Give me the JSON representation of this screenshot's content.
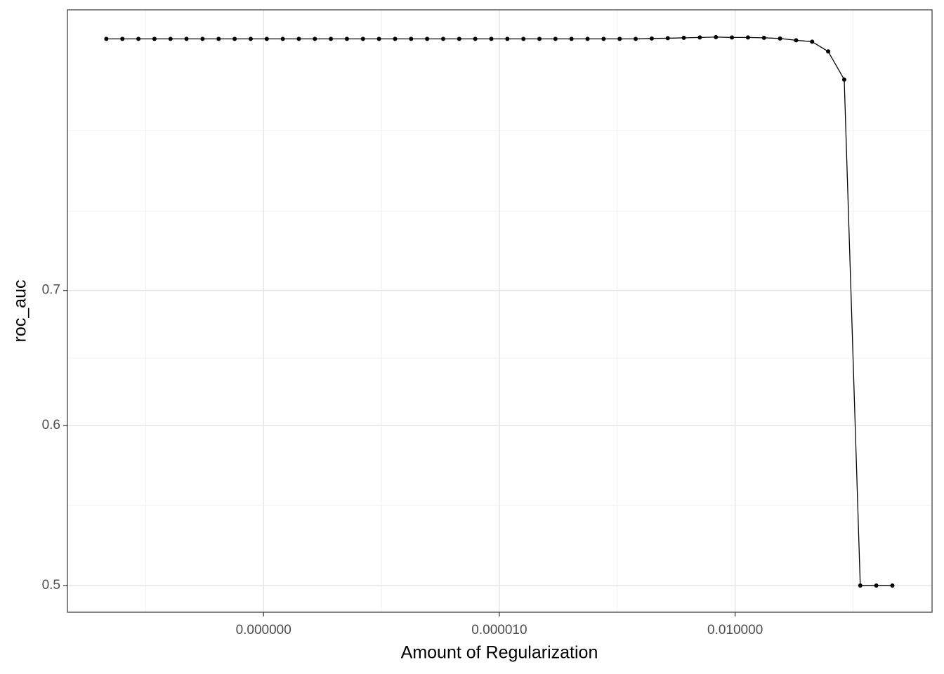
{
  "chart_data": {
    "type": "line",
    "x_label": "Amount of Regularization",
    "y_label": "roc_auc",
    "x_scale": "log",
    "y_scale": "log",
    "grid": true,
    "color": "#000000",
    "x": [
      1e-10,
      1.6e-10,
      2.56e-10,
      4.095e-10,
      6.551e-10,
      1.048e-09,
      1.677e-09,
      2.683e-09,
      4.292e-09,
      6.866e-09,
      1.099e-08,
      1.758e-08,
      2.812e-08,
      4.498e-08,
      7.197e-08,
      1.151e-07,
      1.842e-07,
      2.947e-07,
      4.715e-07,
      7.543e-07,
      1.207e-06,
      1.931e-06,
      3.089e-06,
      4.942e-06,
      7.906e-06,
      1.265e-05,
      2.024e-05,
      3.237e-05,
      5.179e-05,
      8.286e-05,
      0.0001326,
      0.0002121,
      0.0003393,
      0.0005429,
      0.0008685,
      0.001389,
      0.002223,
      0.003556,
      0.00569,
      0.009103,
      0.01456,
      0.0233,
      0.03728,
      0.05964,
      0.09541,
      0.1526,
      0.2442,
      0.3907,
      0.6251,
      1
    ],
    "values": [
      0.9326,
      0.9326,
      0.9326,
      0.9326,
      0.9326,
      0.9326,
      0.9326,
      0.9326,
      0.9326,
      0.9326,
      0.9326,
      0.9326,
      0.9326,
      0.9326,
      0.9326,
      0.9326,
      0.9326,
      0.9326,
      0.9326,
      0.9326,
      0.9326,
      0.9326,
      0.9326,
      0.9326,
      0.9326,
      0.9326,
      0.9326,
      0.9326,
      0.9326,
      0.9326,
      0.9326,
      0.9326,
      0.9326,
      0.9326,
      0.933,
      0.9333,
      0.9337,
      0.9341,
      0.9345,
      0.9341,
      0.9341,
      0.9337,
      0.933,
      0.9311,
      0.9296,
      0.9193,
      0.8903,
      0.5,
      0.5,
      0.5
    ],
    "xlim": [
      3.2e-11,
      3.2
    ],
    "ylim": [
      0.485,
      0.964
    ],
    "xticks": [
      {
        "value": 1e-08,
        "label": "0.000000"
      },
      {
        "value": 1e-05,
        "label": "0.000010"
      },
      {
        "value": 0.01,
        "label": "0.010000"
      }
    ],
    "yticks": [
      0.5,
      0.6,
      0.7
    ],
    "x_minor_ticks": [
      3.16e-10,
      3.16e-07,
      0.000316,
      0.316
    ],
    "y_minor_ticks": [
      0.548,
      0.648,
      0.766,
      0.84
    ]
  }
}
